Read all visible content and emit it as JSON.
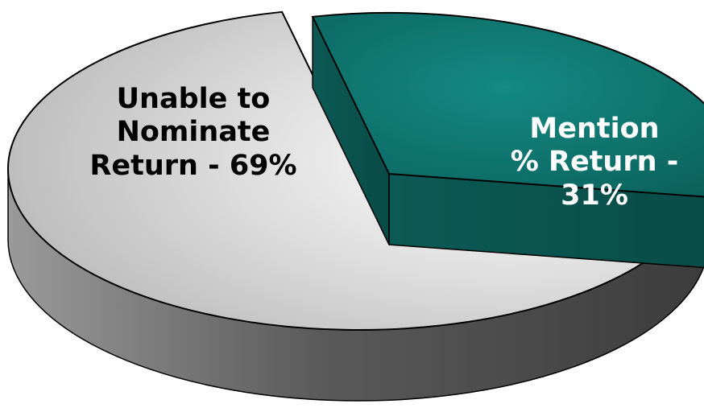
{
  "chart_data": {
    "type": "pie",
    "style": "3d-exploded",
    "slices": [
      {
        "lines": [
          "Unable to",
          "Nominate",
          "Return - 69%"
        ],
        "value": 69,
        "color": "#d0d0d0",
        "text_color": "#000000"
      },
      {
        "lines": [
          "Mention",
          "% Return -",
          "31%"
        ],
        "value": 31,
        "color": "#0e6b66",
        "text_color": "#ffffff"
      }
    ]
  }
}
